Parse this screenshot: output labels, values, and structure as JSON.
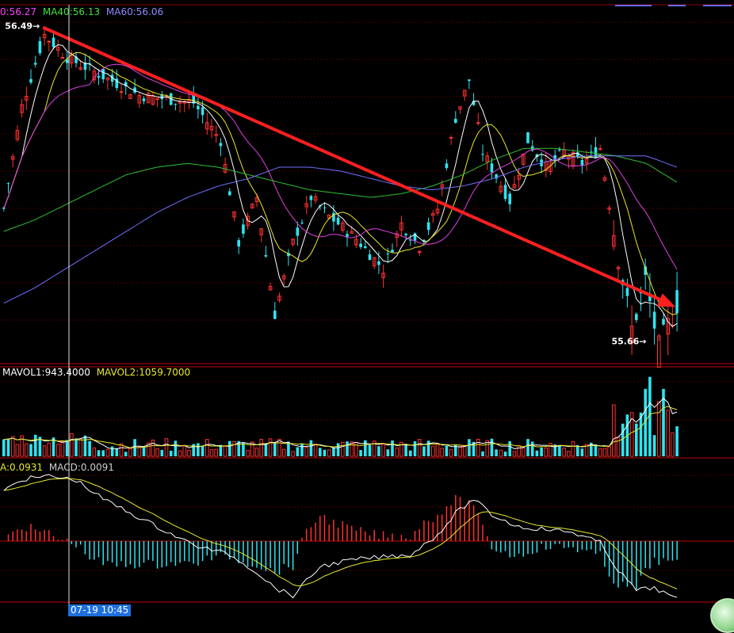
{
  "header": {
    "ma_price": {
      "partial_label": "0:56.27",
      "ma40": "MA40:56.13",
      "ma60": "MA60:56.06"
    },
    "volume": {
      "mavol1": "MAVOL1:943.4000",
      "mavol2": "MAVOL2:1059.7000"
    },
    "macd": {
      "dea": "A:0.0931",
      "macd": "MACD:0.0091"
    }
  },
  "annotations": {
    "high_label": "56.49",
    "low_label": "55.66",
    "cursor_time": "07-19 10:45"
  },
  "colors": {
    "up": "#ff3030",
    "down": "#2fe4f0",
    "ma_white": "#ffffff",
    "ma_yellow": "#e8e82a",
    "ma_magenta": "#e040e0",
    "ma_green": "#30c030",
    "ma_blue": "#7070ff",
    "trend_arrow": "#ff2020",
    "grid": "#8a0000"
  },
  "chart_data": [
    {
      "type": "line",
      "subtype": "candlestick",
      "panel": "price",
      "ylim": [
        55.6,
        56.55
      ],
      "high": 56.49,
      "low": 55.66,
      "series": [
        {
          "name": "MA40",
          "values": [
            55.95,
            55.98,
            56.02,
            56.06,
            56.1,
            56.12,
            56.13,
            56.12,
            56.1,
            56.08,
            56.06,
            56.05,
            56.04,
            56.05,
            56.07,
            56.1,
            56.14,
            56.17,
            56.17,
            56.16,
            56.15,
            56.13,
            56.08
          ]
        },
        {
          "name": "MA60",
          "values": [
            55.76,
            55.8,
            55.85,
            55.9,
            55.95,
            56.0,
            56.04,
            56.07,
            56.09,
            56.12,
            56.12,
            56.11,
            56.09,
            56.07,
            56.06,
            56.07,
            56.09,
            56.12,
            56.14,
            56.15,
            56.15,
            56.15,
            56.12
          ]
        }
      ],
      "trendline": {
        "start": {
          "index": 9,
          "value": 56.49
        },
        "end": {
          "index": 149,
          "value": 55.75
        }
      }
    },
    {
      "type": "bar",
      "panel": "volume",
      "series": [
        {
          "name": "MAVOL1"
        },
        {
          "name": "MAVOL2"
        }
      ]
    },
    {
      "type": "line",
      "panel": "macd",
      "series": [
        {
          "name": "DEA"
        },
        {
          "name": "MACD"
        }
      ]
    }
  ]
}
